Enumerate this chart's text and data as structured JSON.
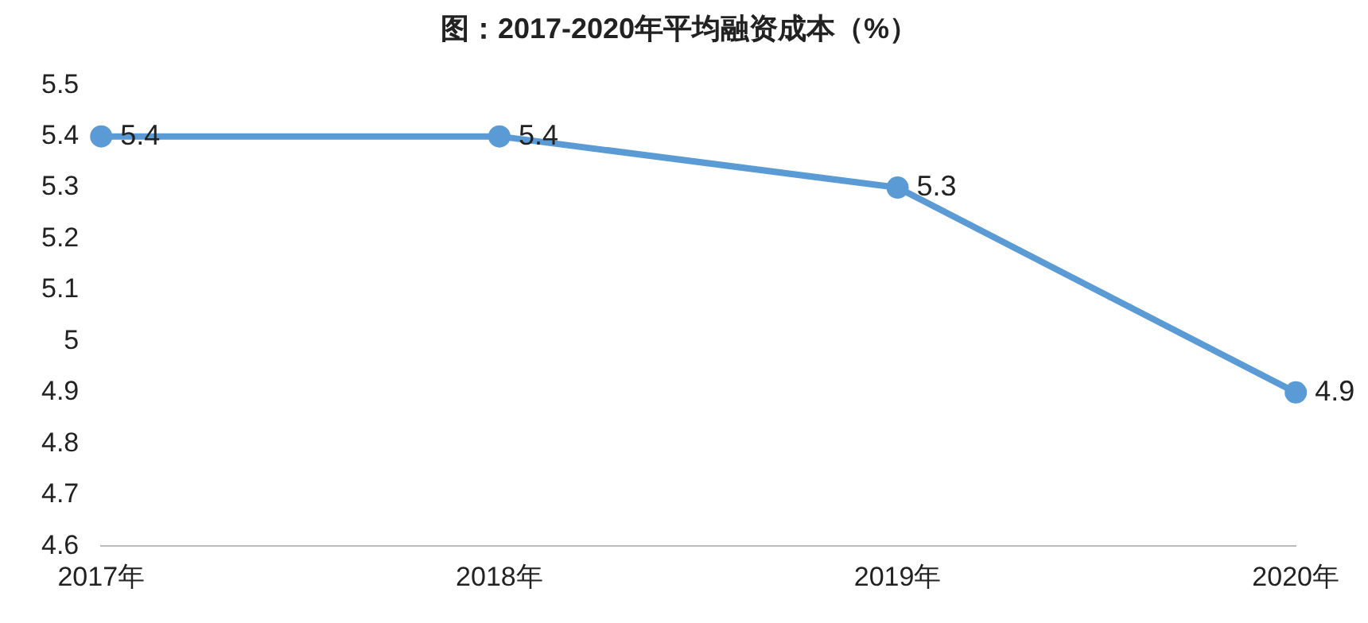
{
  "chart_data": {
    "type": "line",
    "title": "图：2017-2020年平均融资成本（%）",
    "categories": [
      "2017年",
      "2018年",
      "2019年",
      "2020年"
    ],
    "series": [
      {
        "color": "#5b9bd5",
        "values": [
          5.4,
          5.4,
          5.3,
          4.9
        ]
      }
    ],
    "ylim": [
      4.6,
      5.5
    ],
    "yticks": [
      4.6,
      4.7,
      4.8,
      4.9,
      5,
      5.1,
      5.2,
      5.3,
      5.4,
      5.5
    ],
    "grid": false,
    "legend": false,
    "marker": "circle",
    "line_style": "solid",
    "data_labels": true
  }
}
